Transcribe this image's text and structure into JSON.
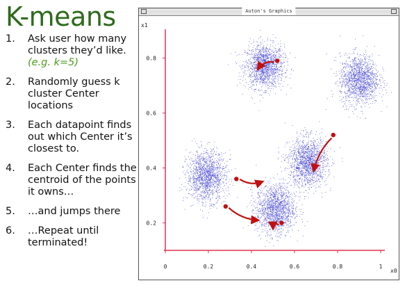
{
  "slide": {
    "title": "K-means",
    "steps": [
      {
        "num": "1.",
        "text": "Ask user how many clusters they’d like.",
        "example": "(e.g. k=5)"
      },
      {
        "num": "2.",
        "text": "Randomly guess k cluster Center locations"
      },
      {
        "num": "3.",
        "text": "Each datapoint finds out which Center it’s closest to."
      },
      {
        "num": "4.",
        "text": "Each Center finds the centroid of the points it owns…"
      },
      {
        "num": "5.",
        "text": "…and jumps there"
      },
      {
        "num": "6.",
        "text": "…Repeat until terminated!"
      }
    ]
  },
  "window": {
    "title": "Auton's Graphics"
  },
  "chart_data": {
    "type": "scatter",
    "xlabel": "x0",
    "ylabel": "x1",
    "xlim": [
      0,
      1
    ],
    "ylim": [
      0.1,
      0.9
    ],
    "x_ticks": [
      "0",
      "0.2",
      "0.4",
      "0.6",
      "0.8",
      "1"
    ],
    "y_ticks": [
      "0.2",
      "0.4",
      "0.6",
      "0.8"
    ],
    "grid": false,
    "point_color": "#3333cc",
    "axis_color": "#e03050",
    "arrow_color": "#c01010",
    "clusters": [
      {
        "cx": 0.46,
        "cy": 0.77,
        "sx": 0.045,
        "sy": 0.04,
        "n": 1500
      },
      {
        "cx": 0.9,
        "cy": 0.72,
        "sx": 0.045,
        "sy": 0.045,
        "n": 1500
      },
      {
        "cx": 0.19,
        "cy": 0.37,
        "sx": 0.045,
        "sy": 0.045,
        "n": 1500
      },
      {
        "cx": 0.66,
        "cy": 0.42,
        "sx": 0.045,
        "sy": 0.045,
        "n": 1500
      },
      {
        "cx": 0.51,
        "cy": 0.25,
        "sx": 0.045,
        "sy": 0.045,
        "n": 1500
      }
    ],
    "centers": [
      {
        "from": [
          0.52,
          0.79
        ],
        "to": [
          0.43,
          0.76
        ]
      },
      {
        "from": [
          0.78,
          0.52
        ],
        "to": [
          0.69,
          0.39
        ]
      },
      {
        "from": [
          0.33,
          0.36
        ],
        "to": [
          0.45,
          0.35
        ]
      },
      {
        "from": [
          0.28,
          0.26
        ],
        "to": [
          0.43,
          0.21
        ]
      },
      {
        "from": [
          0.54,
          0.2
        ],
        "to": [
          0.5,
          0.18
        ]
      }
    ]
  }
}
